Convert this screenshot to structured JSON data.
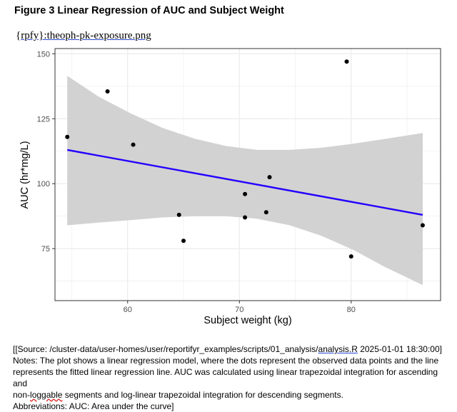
{
  "page": {
    "title": "Figure 3 Linear Regression of AUC and Subject Weight",
    "file_ref_prefix": "{",
    "file_ref_rp": "rpfy",
    "file_ref_rest": "}:theoph-pk-exposure.png"
  },
  "chart_data": {
    "type": "scatter",
    "xlabel": "Subject weight (kg)",
    "ylabel": "AUC (hr*mg/L)",
    "xlim": [
      53.5,
      88
    ],
    "ylim": [
      55,
      152
    ],
    "xticks": [
      60,
      70,
      80
    ],
    "yticks": [
      75,
      100,
      125,
      150
    ],
    "grid": true,
    "points": [
      {
        "x": 54.6,
        "y": 118
      },
      {
        "x": 58.2,
        "y": 135.5
      },
      {
        "x": 60.5,
        "y": 115
      },
      {
        "x": 64.6,
        "y": 88
      },
      {
        "x": 65.0,
        "y": 78
      },
      {
        "x": 70.5,
        "y": 96
      },
      {
        "x": 70.5,
        "y": 87
      },
      {
        "x": 72.4,
        "y": 89
      },
      {
        "x": 72.7,
        "y": 102.5
      },
      {
        "x": 79.6,
        "y": 147
      },
      {
        "x": 80.0,
        "y": 72
      },
      {
        "x": 86.4,
        "y": 84
      }
    ],
    "regression_line": {
      "x": [
        54.6,
        86.4
      ],
      "y": [
        113,
        88
      ]
    },
    "confidence_band": {
      "x": [
        54.6,
        57.4,
        60.3,
        63.1,
        66.0,
        68.8,
        71.6,
        74.5,
        77.3,
        80.2,
        83.0,
        86.4
      ],
      "upper": [
        141.5,
        133.5,
        127,
        121.5,
        117.3,
        114.5,
        113,
        113,
        113.8,
        115.4,
        117.2,
        119.5
      ],
      "lower": [
        84,
        85,
        86,
        87,
        87.5,
        87.5,
        86.5,
        84,
        80,
        74.5,
        68,
        61
      ]
    },
    "colors": {
      "points": "#000000",
      "line": "#2200ff",
      "band": "#d2d2d2",
      "panel_border": "#333333",
      "grid": "#ebebeb"
    }
  },
  "footer": {
    "source_open": "[[Source: /cluster-data/user-homes/user/reportifyr_examples/scripts/01_analysis/",
    "source_file": "analysis.R",
    "source_close": " 2025-01-01 18:30:00]",
    "notes": "Notes: The plot shows a linear regression model, where the dots represent the observed data points and the line represents the fitted linear regression line. AUC was calculated using linear trapezoidal integration for ascending and",
    "notes_cont_a": "non-",
    "notes_cont_b": "loggable",
    "notes_cont_c": " segments and log-linear trapezoidal integration for descending segments.",
    "abbreviations": "Abbreviations: AUC: Area under the curve]"
  }
}
